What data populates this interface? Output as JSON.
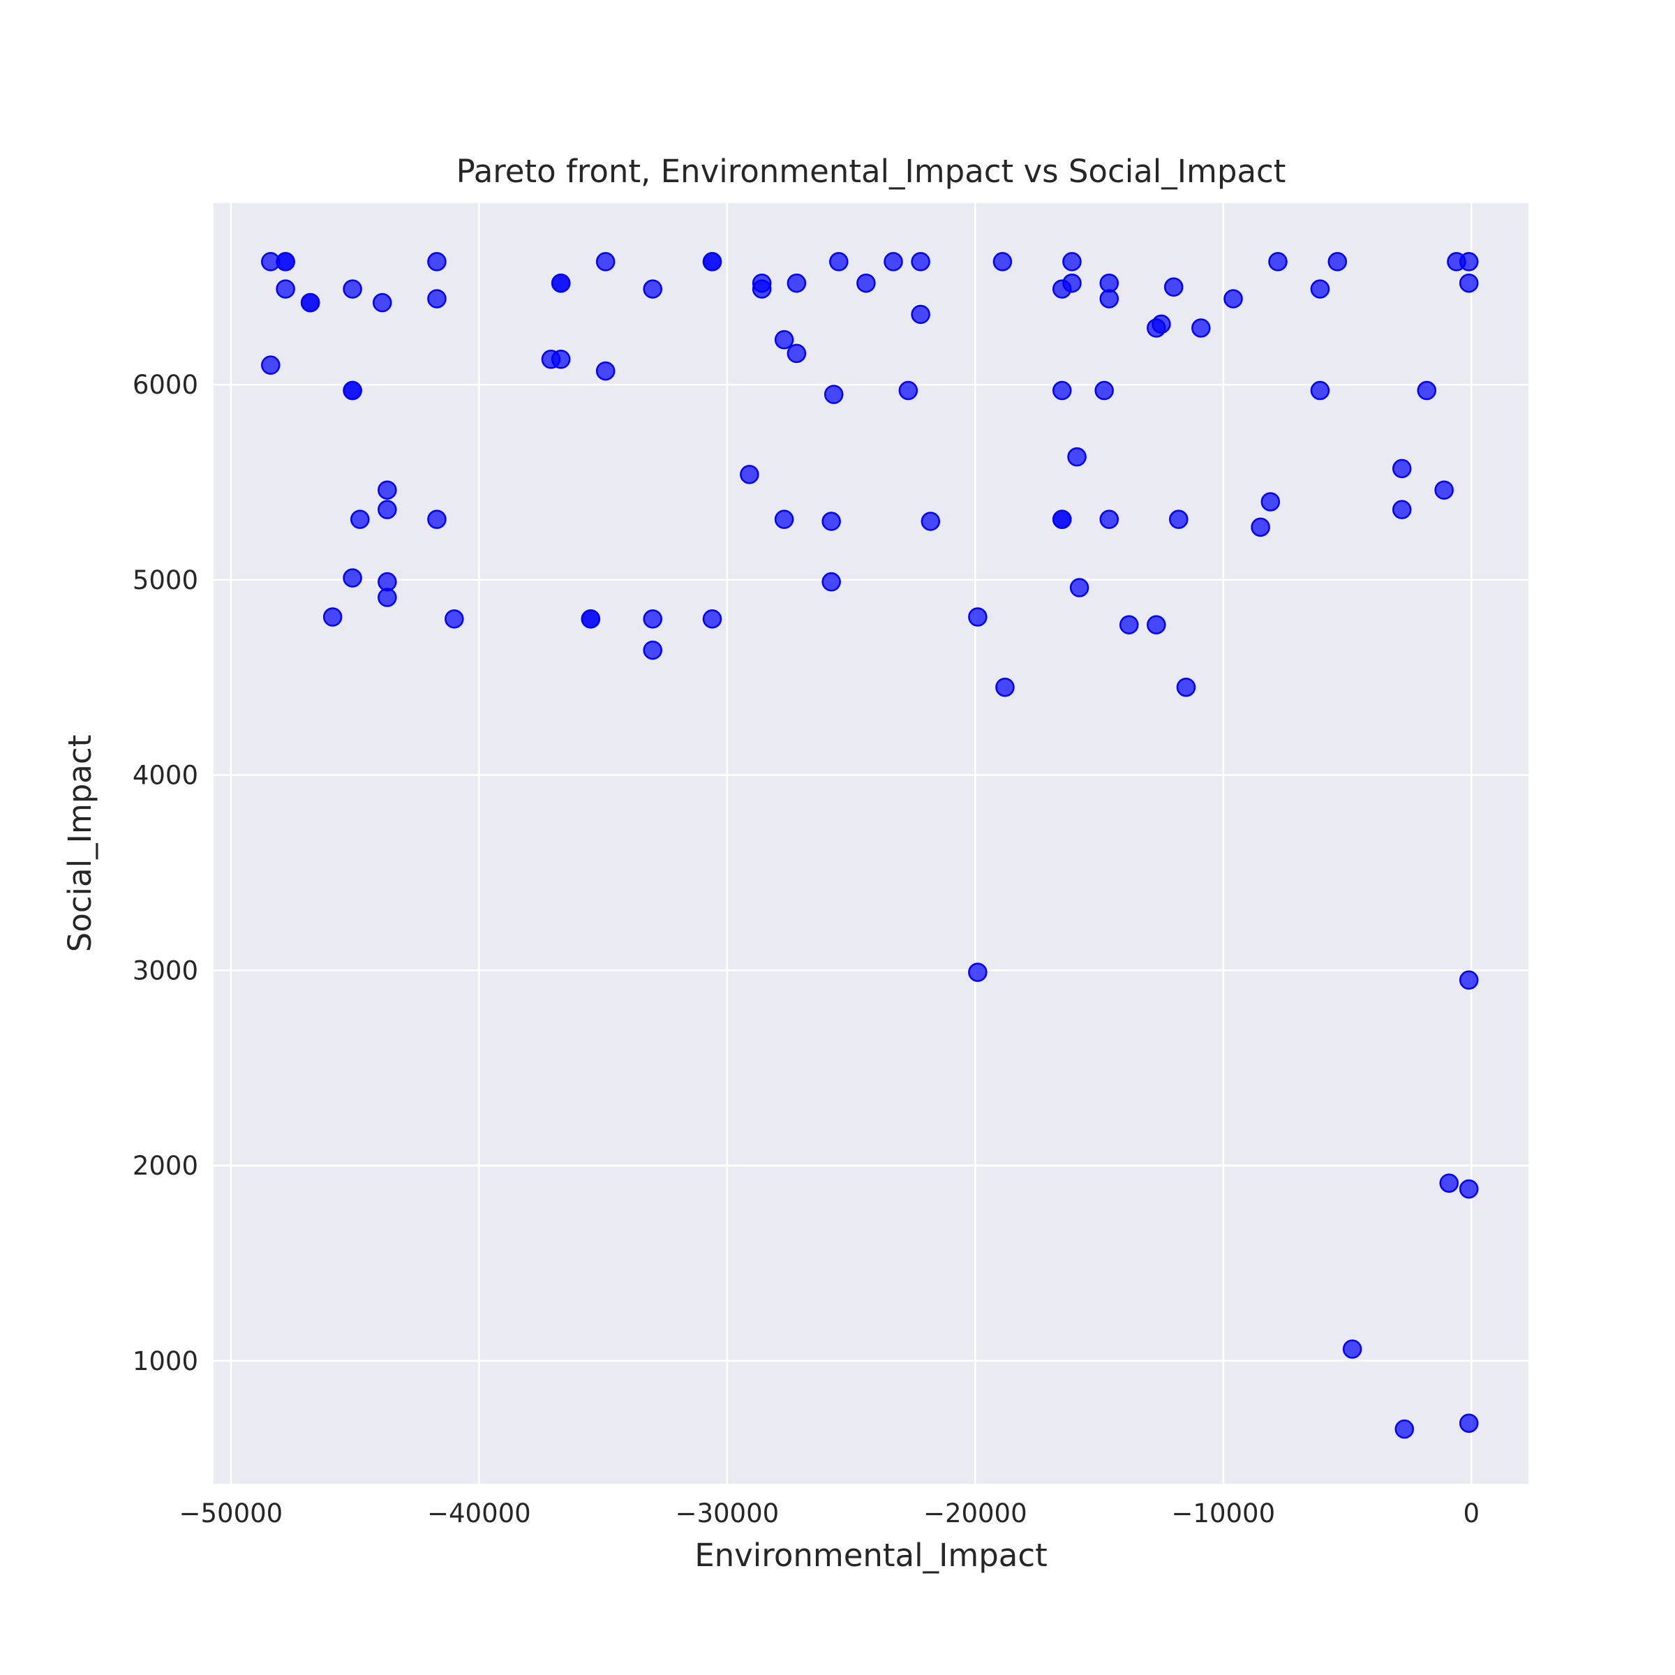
{
  "chart_data": {
    "type": "scatter",
    "title": "Pareto front, Environmental_Impact vs Social_Impact",
    "xlabel": "Environmental_Impact",
    "ylabel": "Social_Impact",
    "xlim": [
      -50700,
      2300
    ],
    "ylim": [
      370,
      6930
    ],
    "xticks": [
      -50000,
      -40000,
      -30000,
      -20000,
      -10000,
      0
    ],
    "xtick_labels": [
      "−50000",
      "−40000",
      "−30000",
      "−20000",
      "−10000",
      "0"
    ],
    "yticks": [
      1000,
      2000,
      3000,
      4000,
      5000,
      6000
    ],
    "ytick_labels": [
      "1000",
      "2000",
      "3000",
      "4000",
      "5000",
      "6000"
    ],
    "grid": true,
    "colors": {
      "plot_background": "#eaeaf2",
      "grid": "#ffffff",
      "marker": "#0000ff",
      "text": "#262626"
    },
    "series": [
      {
        "x": [
          -48400,
          -48400,
          -47800,
          -47800,
          -47800,
          -46800,
          -46800,
          -45900,
          -45100,
          -45100,
          -45100,
          -45100,
          -44800,
          -43900,
          -43700,
          -43700,
          -43700,
          -43700,
          -41700,
          -41700,
          -41700,
          -41000,
          -37100,
          -36700,
          -36700,
          -36700,
          -35500,
          -35500,
          -34900,
          -34900,
          -33000,
          -33000,
          -33000,
          -30600,
          -30600,
          -30600,
          -29100,
          -28600,
          -28600,
          -27700,
          -27700,
          -27200,
          -27200,
          -25800,
          -25800,
          -25700,
          -25500,
          -24400,
          -23300,
          -22700,
          -22200,
          -22200,
          -21800,
          -19900,
          -19900,
          -18900,
          -18800,
          -16500,
          -16500,
          -16500,
          -16500,
          -16100,
          -16100,
          -15900,
          -15800,
          -14800,
          -14600,
          -14600,
          -14600,
          -13800,
          -12700,
          -12700,
          -12500,
          -12000,
          -11800,
          -11500,
          -10900,
          -9600,
          -8500,
          -8100,
          -7800,
          -6100,
          -6100,
          -5400,
          -4800,
          -2800,
          -2800,
          -2700,
          -1800,
          -1100,
          -900,
          -600,
          -100,
          -100,
          -100,
          -100,
          -100
        ],
        "y": [
          6630,
          6100,
          6630,
          6630,
          6490,
          6420,
          6420,
          4810,
          6490,
          5970,
          5970,
          5010,
          5310,
          6420,
          5460,
          5360,
          4990,
          4910,
          6630,
          6440,
          5310,
          4800,
          6130,
          6520,
          6520,
          6130,
          4800,
          4800,
          6630,
          6070,
          6490,
          4800,
          4640,
          6630,
          6630,
          4800,
          5540,
          6520,
          6490,
          6230,
          5310,
          6520,
          6160,
          5300,
          4990,
          5950,
          6630,
          6520,
          6630,
          5970,
          6630,
          6360,
          5300,
          4810,
          2990,
          6630,
          4450,
          6490,
          5970,
          5310,
          5310,
          6630,
          6520,
          5630,
          4960,
          5970,
          6520,
          6440,
          5310,
          4770,
          6290,
          4770,
          6310,
          6500,
          5310,
          4450,
          6290,
          6440,
          5270,
          5400,
          6630,
          6490,
          5970,
          6630,
          1060,
          5570,
          5360,
          650,
          5970,
          5460,
          1910,
          6630,
          6630,
          6520,
          2950,
          1880,
          680
        ]
      }
    ]
  }
}
